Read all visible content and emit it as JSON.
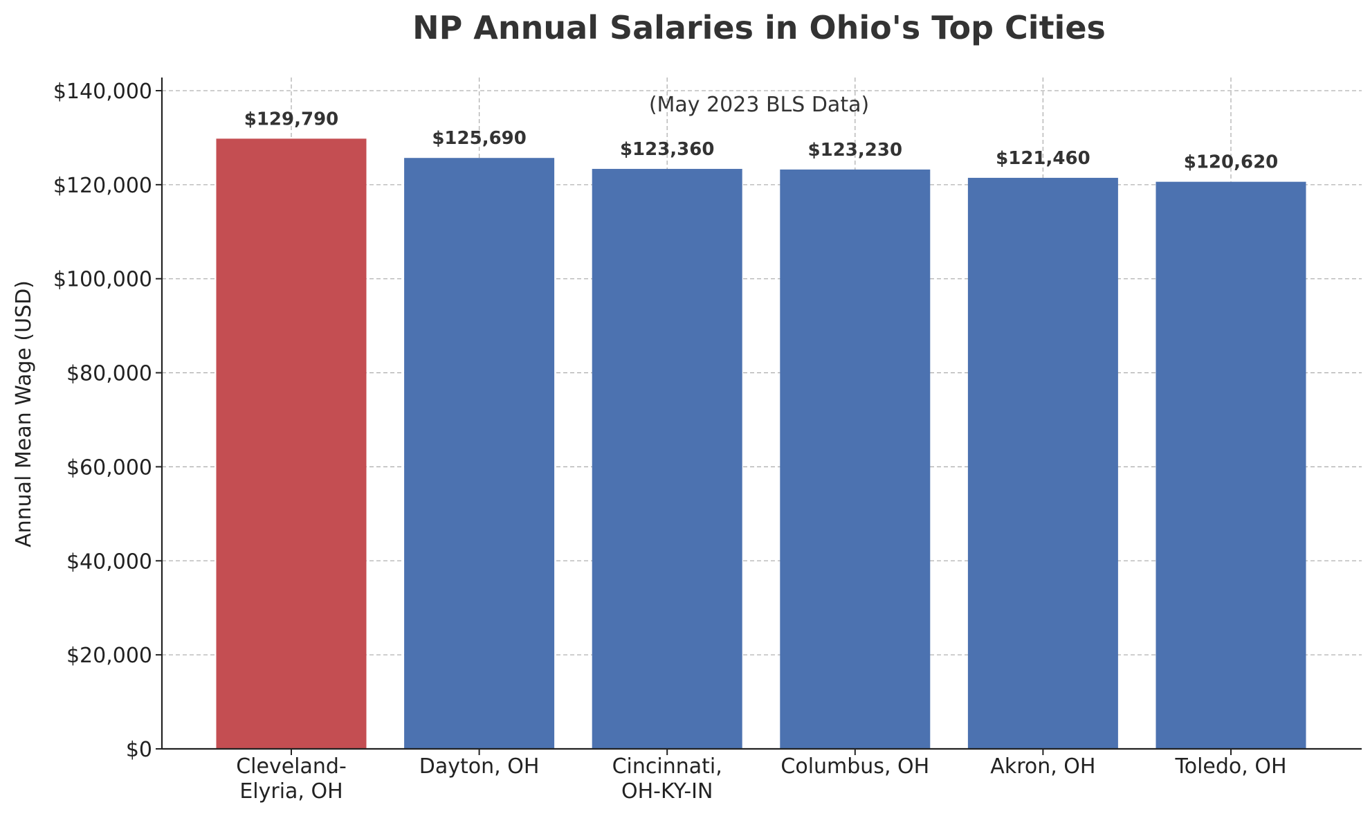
{
  "chart_data": {
    "type": "bar",
    "title": "NP Annual Salaries in Ohio's Top Cities",
    "subtitle": "(May 2023 BLS Data)",
    "ylabel": "Annual Mean Wage (USD)",
    "xlabel": "",
    "ylim": [
      0,
      140000
    ],
    "yticks": [
      0,
      20000,
      40000,
      60000,
      80000,
      100000,
      120000,
      140000
    ],
    "ytick_labels": [
      "$0",
      "$20,000",
      "$40,000",
      "$60,000",
      "$80,000",
      "$100,000",
      "$120,000",
      "$140,000"
    ],
    "grid": true,
    "categories": [
      [
        "Cleveland-",
        "Elyria, OH"
      ],
      [
        "Dayton, OH"
      ],
      [
        "Cincinnati,",
        "OH-KY-IN"
      ],
      [
        "Columbus, OH"
      ],
      [
        "Akron, OH"
      ],
      [
        "Toledo, OH"
      ]
    ],
    "values": [
      129790,
      125690,
      123360,
      123230,
      121460,
      120620
    ],
    "value_labels": [
      "$129,790",
      "$125,690",
      "$123,360",
      "$123,230",
      "$121,460",
      "$120,620"
    ],
    "colors": [
      "#c44e52",
      "#4c72b0",
      "#4c72b0",
      "#4c72b0",
      "#4c72b0",
      "#4c72b0"
    ]
  }
}
